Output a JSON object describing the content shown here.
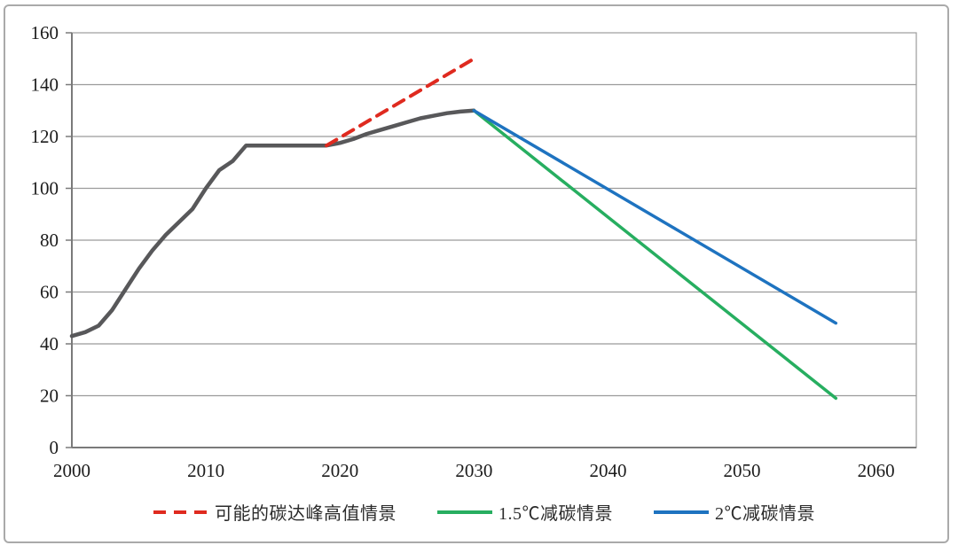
{
  "page": {
    "background": "#ffffff",
    "frame_border_color": "#aaaaaa"
  },
  "chart_data": {
    "type": "line",
    "title": "",
    "xlabel": "",
    "ylabel": "",
    "xlim": [
      2000,
      2063
    ],
    "ylim": [
      0,
      160
    ],
    "x_ticks": [
      "2000",
      "2010",
      "2020",
      "2030",
      "2040",
      "2050",
      "2060"
    ],
    "x_tick_years": [
      2000,
      2010,
      2020,
      2030,
      2040,
      2050,
      2060
    ],
    "y_ticks": [
      0,
      20,
      40,
      60,
      80,
      100,
      120,
      140,
      160
    ],
    "grid": "horizontal-only",
    "gridline_color": "#9b9b9b",
    "axis_line_color": "#7a7a7a",
    "axis_text_color": "#1c1c1c",
    "legend_position": "bottom-center",
    "series": [
      {
        "id": "historical-emissions-curve",
        "label": "",
        "show_in_legend": false,
        "color": "#58585a",
        "style": "solid",
        "width": 4.5,
        "x": [
          2000,
          2001,
          2002,
          2003,
          2004,
          2005,
          2006,
          2007,
          2008,
          2009,
          2010,
          2011,
          2012,
          2013,
          2014,
          2015,
          2016,
          2017,
          2018,
          2019,
          2020,
          2021,
          2022,
          2023,
          2024,
          2025,
          2026,
          2027,
          2028,
          2029,
          2030
        ],
        "y": [
          43,
          44.5,
          47,
          53,
          61,
          69,
          76,
          82,
          87,
          92,
          100,
          107,
          110.5,
          116.5,
          116.5,
          116.5,
          116.5,
          116.5,
          116.5,
          116.5,
          117.5,
          119,
          121,
          122.5,
          124,
          125.5,
          127,
          128,
          129,
          129.6,
          130
        ]
      },
      {
        "id": "possible-peak-high-scenario",
        "label": "可能的碳达峰高值情景",
        "show_in_legend": true,
        "color": "#df2a1f",
        "style": "dashed",
        "width": 4,
        "x": [
          2019,
          2030
        ],
        "y": [
          116.5,
          150
        ]
      },
      {
        "id": "scenario-1-5c",
        "label": "1.5℃减碳情景",
        "show_in_legend": true,
        "color": "#27ae60",
        "style": "solid",
        "width": 3.5,
        "x": [
          2030,
          2057
        ],
        "y": [
          130,
          19
        ]
      },
      {
        "id": "scenario-2c",
        "label": "2℃减碳情景",
        "show_in_legend": true,
        "color": "#1e73c0",
        "style": "solid",
        "width": 3.5,
        "x": [
          2030,
          2057
        ],
        "y": [
          130,
          48
        ]
      }
    ]
  }
}
